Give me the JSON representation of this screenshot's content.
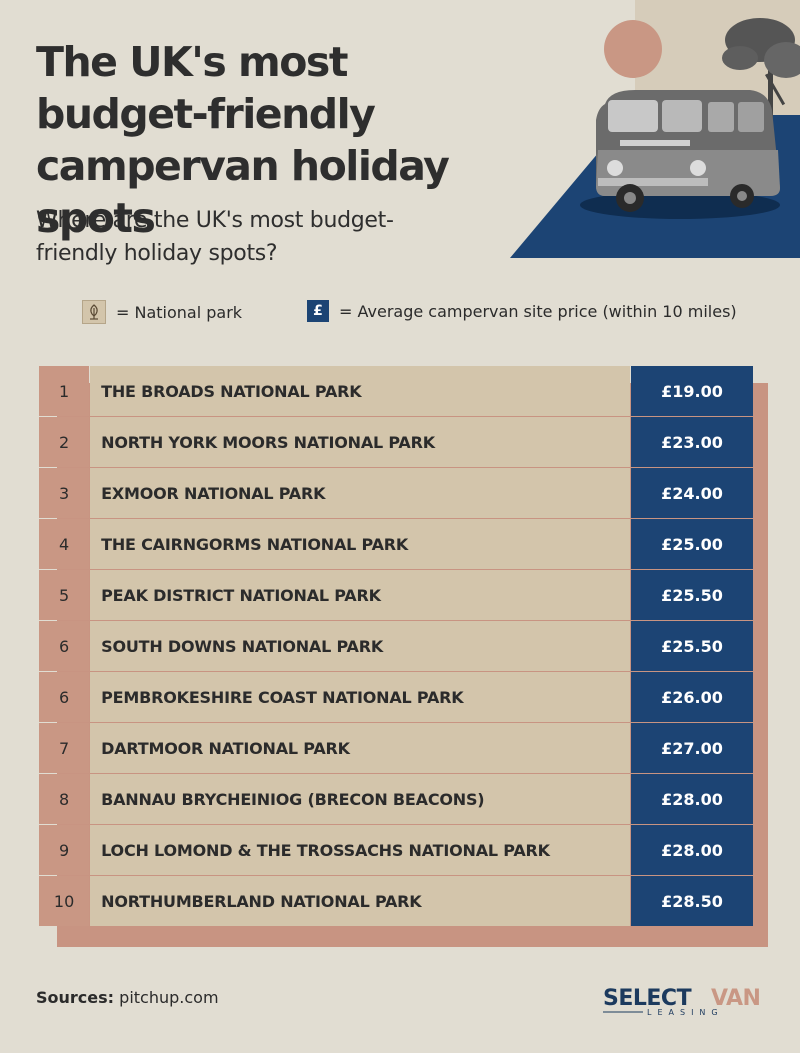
{
  "title": "The UK's most budget-friendly campervan holiday spots",
  "subtitle": "Where are the UK's most budget-friendly holiday spots?",
  "legend": {
    "park_label": "= National park",
    "price_label": "= Average campervan site price (within 10 miles)",
    "price_icon": "£"
  },
  "rows": [
    {
      "rank": "1",
      "name": "THE BROADS NATIONAL PARK",
      "price": "£19.00"
    },
    {
      "rank": "2",
      "name": "NORTH YORK MOORS NATIONAL PARK",
      "price": "£23.00"
    },
    {
      "rank": "3",
      "name": "EXMOOR NATIONAL PARK",
      "price": "£24.00"
    },
    {
      "rank": "4",
      "name": "THE CAIRNGORMS NATIONAL PARK",
      "price": "£25.00"
    },
    {
      "rank": "5",
      "name": "PEAK DISTRICT NATIONAL PARK",
      "price": "£25.50"
    },
    {
      "rank": "6",
      "name": "SOUTH DOWNS NATIONAL PARK",
      "price": "£25.50"
    },
    {
      "rank": "6",
      "name": "PEMBROKESHIRE COAST NATIONAL PARK",
      "price": "£26.00"
    },
    {
      "rank": "7",
      "name": "DARTMOOR NATIONAL PARK",
      "price": "£27.00"
    },
    {
      "rank": "8",
      "name": "BANNAU BRYCHEINIOG (BRECON BEACONS)",
      "price": "£28.00"
    },
    {
      "rank": "9",
      "name": "LOCH LOMOND & THE TROSSACHS NATIONAL PARK",
      "price": "£28.00"
    },
    {
      "rank": "10",
      "name": "NORTHUMBERLAND NATIONAL PARK",
      "price": "£28.50"
    }
  ],
  "sources": {
    "label": "Sources:",
    "value": "pitchup.com"
  },
  "logo": {
    "line1": "SELECT",
    "line2": "VAN",
    "tagline": "LEASING"
  },
  "colors": {
    "background": "#e1ddd2",
    "navy": "#1c4474",
    "terracotta": "#c99784",
    "sand": "#d3c5ab"
  }
}
